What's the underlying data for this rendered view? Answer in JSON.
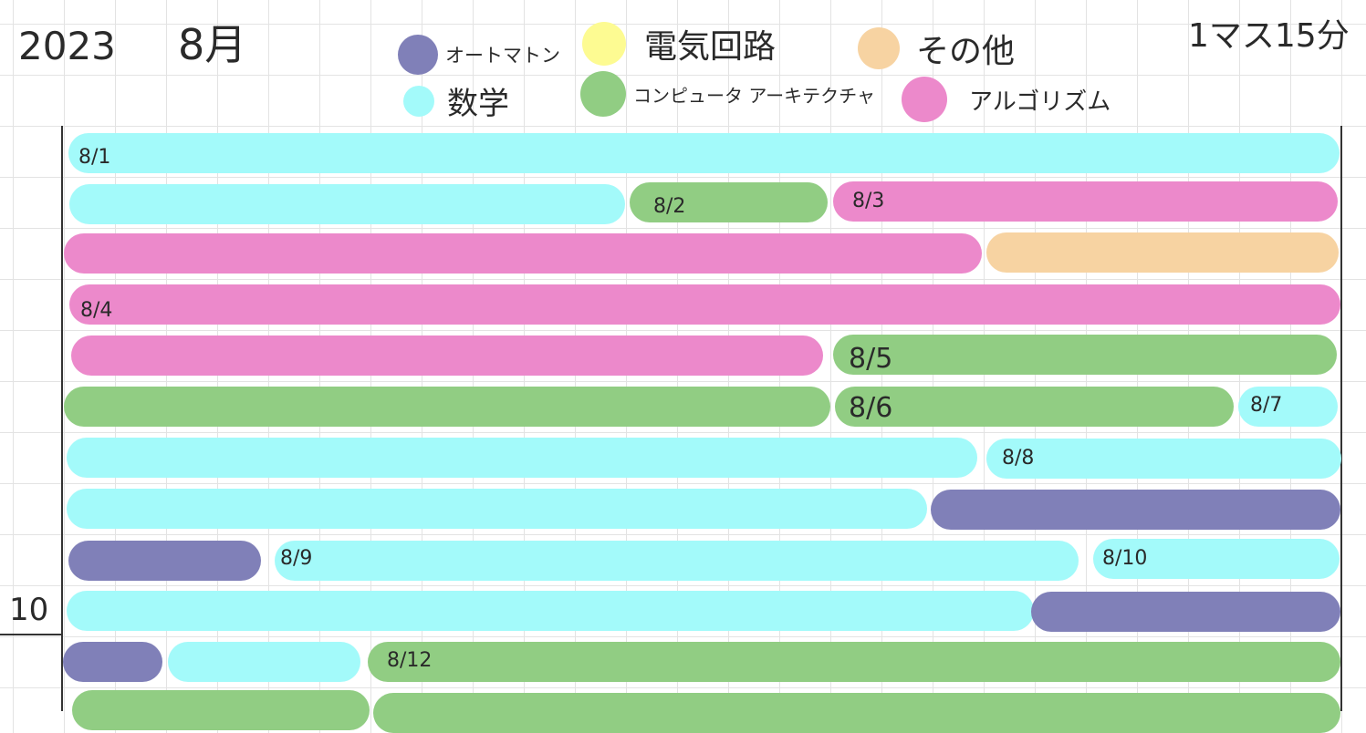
{
  "header": {
    "year": "2023",
    "month": "8月",
    "scale_note": "1マス15分"
  },
  "colors": {
    "automaton": "#8080b8",
    "circuit": "#fdfb92",
    "other": "#f7d3a2",
    "math": "#a3fafa",
    "arch": "#91cd83",
    "algorithm": "#ec89cb"
  },
  "legend": [
    {
      "key": "automaton",
      "label": "オートマトン",
      "color": "#8080b8"
    },
    {
      "key": "circuit",
      "label": "電気回路",
      "color": "#fdfb92"
    },
    {
      "key": "other",
      "label": "その他",
      "color": "#f7d3a2"
    },
    {
      "key": "math",
      "label": "数学",
      "color": "#a3fafa"
    },
    {
      "key": "arch",
      "label": "コンピュータ アーキテクチャ",
      "color": "#91cd83"
    },
    {
      "key": "algorithm",
      "label": "アルゴリズム",
      "color": "#ec89cb"
    }
  ],
  "time_marker": "10",
  "rows": [
    {
      "segments": [
        {
          "subject": "math",
          "label": "8/1"
        }
      ]
    },
    {
      "segments": [
        {
          "subject": "math",
          "label": ""
        },
        {
          "subject": "arch",
          "label": "8/2"
        },
        {
          "subject": "algorithm",
          "label": "8/3"
        }
      ]
    },
    {
      "segments": [
        {
          "subject": "algorithm",
          "label": ""
        },
        {
          "subject": "other",
          "label": ""
        }
      ]
    },
    {
      "segments": [
        {
          "subject": "algorithm",
          "label": "8/4"
        }
      ]
    },
    {
      "segments": [
        {
          "subject": "algorithm",
          "label": ""
        },
        {
          "subject": "arch",
          "label": "8/5"
        }
      ]
    },
    {
      "segments": [
        {
          "subject": "arch",
          "label": ""
        },
        {
          "subject": "arch",
          "label": "8/6"
        },
        {
          "subject": "math",
          "label": "8/7"
        }
      ]
    },
    {
      "segments": [
        {
          "subject": "math",
          "label": ""
        },
        {
          "subject": "math",
          "label": "8/8"
        }
      ]
    },
    {
      "segments": [
        {
          "subject": "math",
          "label": ""
        },
        {
          "subject": "automaton",
          "label": ""
        }
      ]
    },
    {
      "segments": [
        {
          "subject": "automaton",
          "label": ""
        },
        {
          "subject": "math",
          "label": "8/9"
        },
        {
          "subject": "math",
          "label": "8/10"
        }
      ]
    },
    {
      "segments": [
        {
          "subject": "math",
          "label": ""
        },
        {
          "subject": "automaton",
          "label": ""
        }
      ]
    },
    {
      "segments": [
        {
          "subject": "automaton",
          "label": ""
        },
        {
          "subject": "math",
          "label": ""
        },
        {
          "subject": "arch",
          "label": "8/12"
        }
      ]
    },
    {
      "segments": [
        {
          "subject": "arch",
          "label": ""
        },
        {
          "subject": "arch",
          "label": ""
        }
      ]
    }
  ]
}
